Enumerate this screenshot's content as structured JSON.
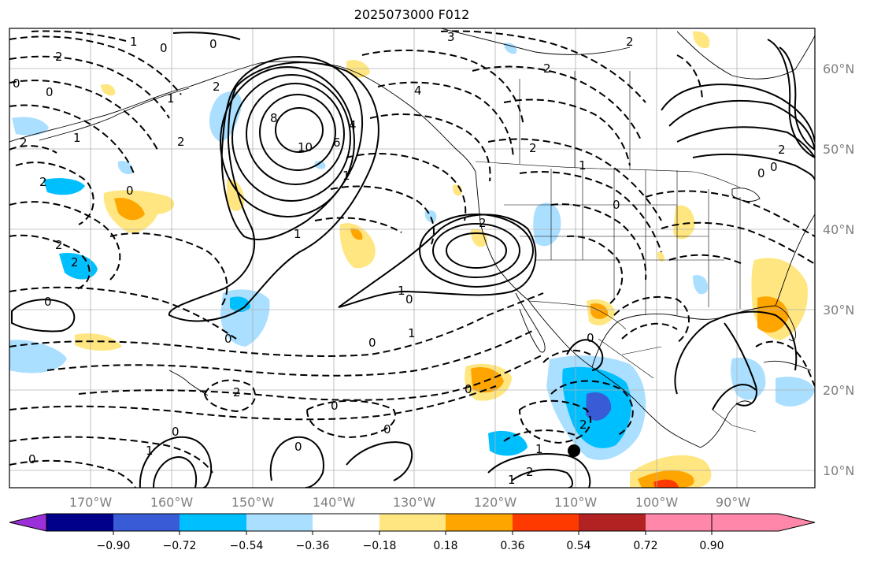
{
  "title": "2025073000 F012",
  "map": {
    "lon_labels": [
      "170°W",
      "160°W",
      "150°W",
      "140°W",
      "130°W",
      "120°W",
      "110°W",
      "100°W",
      "90°W"
    ],
    "lat_labels": [
      "60°N",
      "50°N",
      "40°N",
      "30°N",
      "20°N",
      "10°N"
    ],
    "axis_label_color": "#7f7f7f",
    "contour_labels": [
      {
        "id": "h-0-a",
        "text": "0"
      },
      {
        "id": "h-2-a",
        "text": "2"
      },
      {
        "id": "h-0-b",
        "text": "0"
      },
      {
        "id": "h-2-b",
        "text": "2"
      },
      {
        "id": "h-0-c",
        "text": "0"
      },
      {
        "id": "h-1-a",
        "text": "1"
      },
      {
        "id": "h-2-c",
        "text": "2"
      },
      {
        "id": "h-1-b",
        "text": "1"
      },
      {
        "id": "h-2-d",
        "text": "2"
      },
      {
        "id": "h-1-c",
        "text": "1"
      },
      {
        "id": "h-2-e",
        "text": "2"
      },
      {
        "id": "h-3-a",
        "text": "3"
      },
      {
        "id": "h-2-f",
        "text": "2"
      },
      {
        "id": "h-0-d",
        "text": "0"
      },
      {
        "id": "h-8",
        "text": "8"
      },
      {
        "id": "h-10",
        "text": "10"
      },
      {
        "id": "h-6",
        "text": "6"
      },
      {
        "id": "h-4-a",
        "text": "4"
      },
      {
        "id": "h-1-d",
        "text": "1"
      },
      {
        "id": "h-4-b",
        "text": "4"
      },
      {
        "id": "h-2-g",
        "text": "2"
      },
      {
        "id": "h-1-e",
        "text": "1"
      },
      {
        "id": "h-0-e",
        "text": "0"
      },
      {
        "id": "h-2-h",
        "text": "2"
      },
      {
        "id": "h-2-i",
        "text": "2"
      },
      {
        "id": "h-2-j",
        "text": "2"
      },
      {
        "id": "h-0-f",
        "text": "0"
      },
      {
        "id": "h-2-k",
        "text": "2"
      },
      {
        "id": "h-1-f",
        "text": "1"
      },
      {
        "id": "h-0-g",
        "text": "0"
      },
      {
        "id": "h-1-g",
        "text": "1"
      },
      {
        "id": "h-0-h",
        "text": "0"
      },
      {
        "id": "h-0-i",
        "text": "0"
      },
      {
        "id": "h-0-j",
        "text": "0"
      },
      {
        "id": "h-2-l",
        "text": "2"
      },
      {
        "id": "h-0-k",
        "text": "0"
      },
      {
        "id": "h-0-l",
        "text": "0"
      },
      {
        "id": "h-1-h",
        "text": "1"
      },
      {
        "id": "h-2-m",
        "text": "2"
      },
      {
        "id": "h-0-m",
        "text": "0"
      },
      {
        "id": "h-0-n",
        "text": "0"
      },
      {
        "id": "h-0-o",
        "text": "0"
      },
      {
        "id": "h-0-p",
        "text": "0"
      },
      {
        "id": "h-0-q",
        "text": "0"
      },
      {
        "id": "h-0-r",
        "text": "0"
      },
      {
        "id": "h-1-i",
        "text": "1"
      },
      {
        "id": "h-2-n",
        "text": "2"
      },
      {
        "id": "h-0-s",
        "text": "0"
      },
      {
        "id": "h-1-j",
        "text": "1"
      },
      {
        "id": "h-2-o",
        "text": "2"
      },
      {
        "id": "h-1-k",
        "text": "1"
      }
    ]
  },
  "colorbar": {
    "tick_labels": [
      "−0.90",
      "−0.72",
      "−0.54",
      "−0.36",
      "−0.18",
      "0.18",
      "0.36",
      "0.54",
      "0.72",
      "0.90"
    ],
    "colors": [
      "#9b30d9",
      "#00008b",
      "#3a5bd6",
      "#00bfff",
      "#aadfff",
      "#ffffff",
      "#ffe680",
      "#ffa500",
      "#ff3a00",
      "#b22222",
      "#ff88aa"
    ]
  }
}
